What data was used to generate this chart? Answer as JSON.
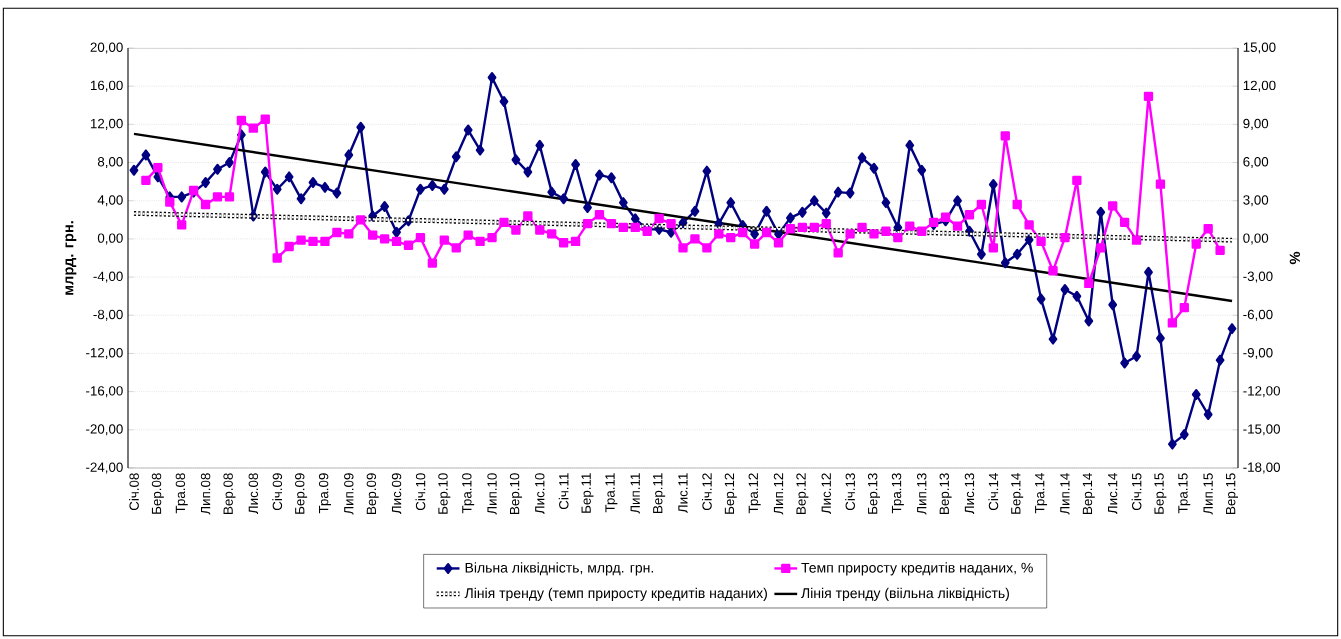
{
  "chart_data": {
    "type": "line",
    "ylabel": "млрд. грн.",
    "y2label": "%",
    "categories": [
      "Січ.08",
      null,
      "Бер.08",
      null,
      "Тра.08",
      null,
      "Лип.08",
      null,
      "Вер.08",
      null,
      "Лис.08",
      null,
      "Січ.09",
      null,
      "Бер.09",
      null,
      "Тра.09",
      null,
      "Лип.09",
      null,
      "Вер.09",
      null,
      "Лис.09",
      null,
      "Січ.10",
      null,
      "Бер.10",
      null,
      "Тра.10",
      null,
      "Лип.10",
      null,
      "Вер.10",
      null,
      "Лис.10",
      null,
      "Січ.11",
      null,
      "Бер.11",
      null,
      "Тра.11",
      null,
      "Лип.11",
      null,
      "Вер.11",
      null,
      "Лис.11",
      null,
      "Січ.12",
      null,
      "Бер.12",
      null,
      "Тра.12",
      null,
      "Лип.12",
      null,
      "Вер.12",
      null,
      "Лис.12",
      null,
      "Січ.13",
      null,
      "Бер.13",
      null,
      "Тра.13",
      null,
      "Лип.13",
      null,
      "Вер.13",
      null,
      "Лис.13",
      null,
      "Січ.14",
      null,
      "Бер.14",
      null,
      "Тра.14",
      null,
      "Лип.14",
      null,
      "Вер.14",
      null,
      "Лис.14",
      null,
      "Січ.15",
      null,
      "Бер.15",
      null,
      "Тра.15",
      null,
      "Лип.15",
      null,
      "Вер.15"
    ],
    "series": [
      {
        "name": "Вільна ліквідність, млрд. грн.",
        "color": "#000080",
        "marker": "diamond",
        "line_style": "solid",
        "values": [
          7.2,
          8.8,
          6.5,
          4.4,
          4.4,
          4.9,
          5.9,
          7.3,
          8.0,
          10.9,
          2.4,
          7.0,
          5.2,
          6.5,
          4.2,
          5.9,
          5.4,
          4.8,
          8.8,
          11.7,
          2.4,
          3.4,
          0.7,
          1.9,
          5.2,
          5.6,
          5.2,
          8.6,
          11.4,
          9.3,
          16.9,
          14.4,
          8.3,
          7.0,
          9.8,
          4.9,
          4.2,
          7.8,
          3.3,
          6.7,
          6.4,
          3.8,
          2.1,
          1.0,
          1.0,
          0.7,
          1.7,
          2.9,
          7.1,
          1.6,
          3.8,
          1.4,
          0.5,
          2.9,
          0.5,
          2.2,
          2.8,
          4.0,
          2.7,
          4.9,
          4.8,
          8.5,
          7.4,
          3.8,
          1.2,
          9.8,
          7.2,
          1.5,
          1.9,
          4.0,
          0.8,
          -1.6,
          5.7,
          -2.5,
          -1.6,
          -0.1,
          -6.3,
          -10.5,
          -5.3,
          -6.0,
          -8.6,
          2.8,
          -6.9,
          -13.0,
          -12.3,
          -3.5,
          -10.4,
          -21.5,
          -20.5,
          -16.3,
          -18.4,
          -12.7,
          -9.4
        ]
      },
      {
        "name": "Темп приросту кредитів наданих, %",
        "color": "#ff00ff",
        "marker": "square",
        "line_style": "solid",
        "axis": "y2",
        "values": [
          null,
          4.6,
          5.6,
          2.9,
          1.1,
          3.8,
          2.7,
          3.3,
          3.3,
          9.3,
          8.7,
          9.4,
          -1.5,
          -0.6,
          -0.1,
          -0.2,
          -0.2,
          0.5,
          0.4,
          1.5,
          0.3,
          0.0,
          -0.2,
          -0.5,
          0.1,
          -1.9,
          -0.1,
          -0.7,
          0.3,
          -0.2,
          0.1,
          1.3,
          0.7,
          1.8,
          0.7,
          0.4,
          -0.3,
          -0.2,
          1.2,
          1.9,
          1.2,
          0.9,
          0.9,
          0.6,
          1.6,
          1.2,
          -0.7,
          0.0,
          -0.7,
          0.4,
          0.1,
          0.5,
          -0.4,
          0.5,
          -0.3,
          0.8,
          0.9,
          0.9,
          1.2,
          -1.1,
          0.4,
          0.9,
          0.4,
          0.6,
          0.1,
          1.0,
          0.6,
          1.3,
          1.7,
          1.0,
          1.9,
          2.7,
          -0.7,
          8.1,
          2.7,
          1.1,
          -0.2,
          -2.5,
          0.1,
          4.6,
          -3.5,
          -0.7,
          2.6,
          1.3,
          -0.1,
          11.2,
          4.3,
          -6.6,
          -5.4,
          -0.4,
          0.8,
          -0.9,
          null
        ]
      },
      {
        "name": "Лінія тренду (темп приросту кредитів наданих)",
        "color": "#000000",
        "marker": "none",
        "line_style": "dotted",
        "axis": "y2",
        "x": [
          "Січ.08",
          "Вер.15"
        ],
        "values": [
          2.0,
          -0.1
        ]
      },
      {
        "name": "Лінія тренду (віільна ліквідність)",
        "color": "#000000",
        "marker": "none",
        "line_style": "solid",
        "x": [
          "Січ.08",
          "Вер.15"
        ],
        "values": [
          11.0,
          -6.5
        ]
      }
    ],
    "ylim": [
      -24,
      20
    ],
    "yticks": [
      {
        "value": -24,
        "label": "-24,00"
      },
      {
        "value": -20,
        "label": "-20,00"
      },
      {
        "value": -16,
        "label": "-16,00"
      },
      {
        "value": -12,
        "label": "-12,00"
      },
      {
        "value": -8,
        "label": "-8,00"
      },
      {
        "value": -4,
        "label": "-4,00"
      },
      {
        "value": 0,
        "label": "0,00"
      },
      {
        "value": 4,
        "label": "4,00"
      },
      {
        "value": 8,
        "label": "8,00"
      },
      {
        "value": 12,
        "label": "12,00"
      },
      {
        "value": 16,
        "label": "16,00"
      },
      {
        "value": 20,
        "label": "20,00"
      }
    ],
    "y2lim": [
      -18,
      15
    ],
    "y2ticks": [
      {
        "value": -18,
        "label": "-18,00"
      },
      {
        "value": -15,
        "label": "-15,00"
      },
      {
        "value": -12,
        "label": "-12,00"
      },
      {
        "value": -9,
        "label": "-9,00"
      },
      {
        "value": -6,
        "label": "-6,00"
      },
      {
        "value": -3,
        "label": "-3,00"
      },
      {
        "value": 0,
        "label": "0,00"
      },
      {
        "value": 3,
        "label": "3,00"
      },
      {
        "value": 6,
        "label": "6,00"
      },
      {
        "value": 9,
        "label": "9,00"
      },
      {
        "value": 12,
        "label": "12,00"
      },
      {
        "value": 15,
        "label": "15,00"
      }
    ],
    "grid": "y",
    "legend": "bottom"
  }
}
